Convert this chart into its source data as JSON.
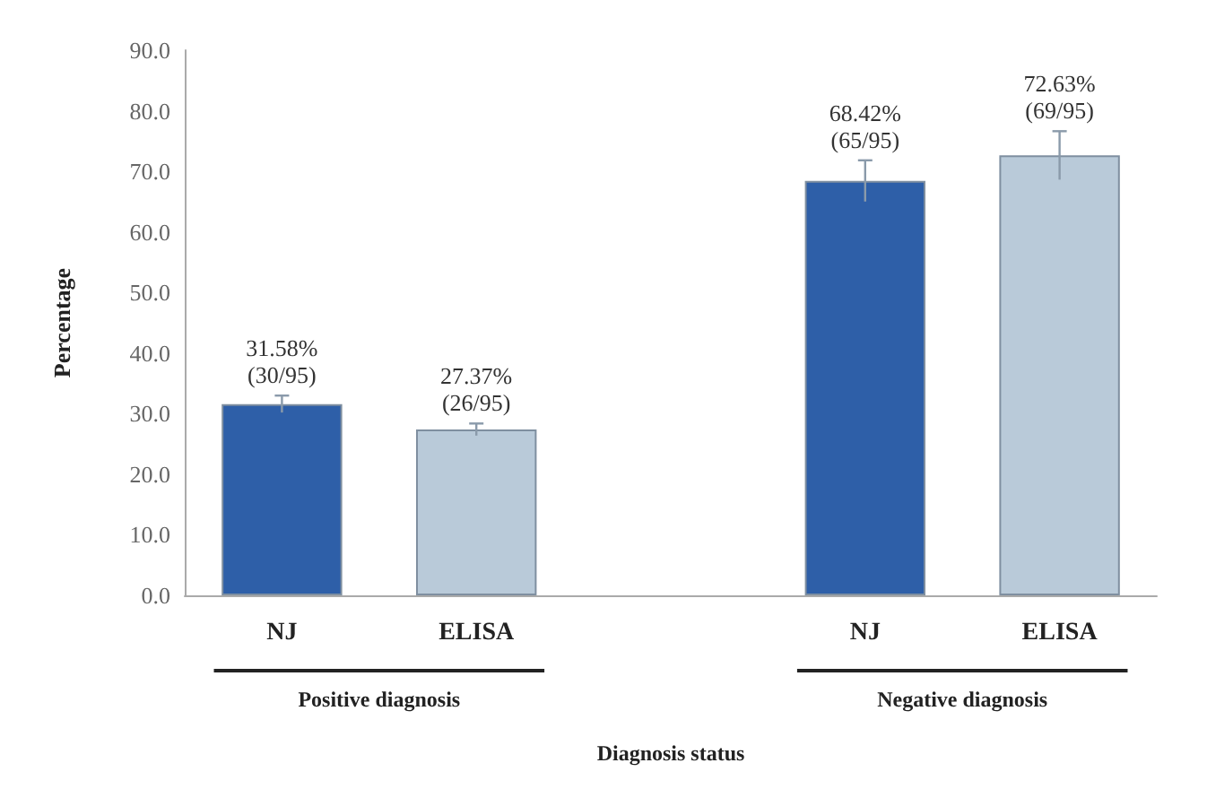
{
  "chart_data": {
    "type": "bar",
    "xlabel": "Diagnosis status",
    "ylabel": "Percentage",
    "categories": [
      "NJ",
      "ELISA",
      null,
      "NJ",
      "ELISA"
    ],
    "values": [
      31.58,
      27.37,
      null,
      68.42,
      72.63
    ],
    "colors": [
      "#2e5fa8",
      "#b9cad9",
      "#ffffff",
      "#2e5fa8",
      "#b9cad9"
    ],
    "errors": [
      1.4,
      1.0,
      null,
      3.4,
      4.0
    ],
    "value_labels": [
      "31.58%\n(30/95)",
      "27.37%\n(26/95)",
      null,
      "68.42%\n(65/95)",
      "72.63%\n(69/95)"
    ],
    "annotations": [
      "Positive diagnosis",
      "Negative diagnosis"
    ],
    "ylim": [
      0,
      90
    ],
    "yticks": [
      {
        "value": 0,
        "label": "0.0"
      },
      {
        "value": 10,
        "label": "10.0"
      },
      {
        "value": 20,
        "label": "20.0"
      },
      {
        "value": 30,
        "label": "30.0"
      },
      {
        "value": 40,
        "label": "40.0"
      },
      {
        "value": 50,
        "label": "50.0"
      },
      {
        "value": 60,
        "label": "60.0"
      },
      {
        "value": 70,
        "label": "70.0"
      },
      {
        "value": 80,
        "label": "80.0"
      },
      {
        "value": 90,
        "label": "90.0"
      }
    ],
    "grid": false
  }
}
